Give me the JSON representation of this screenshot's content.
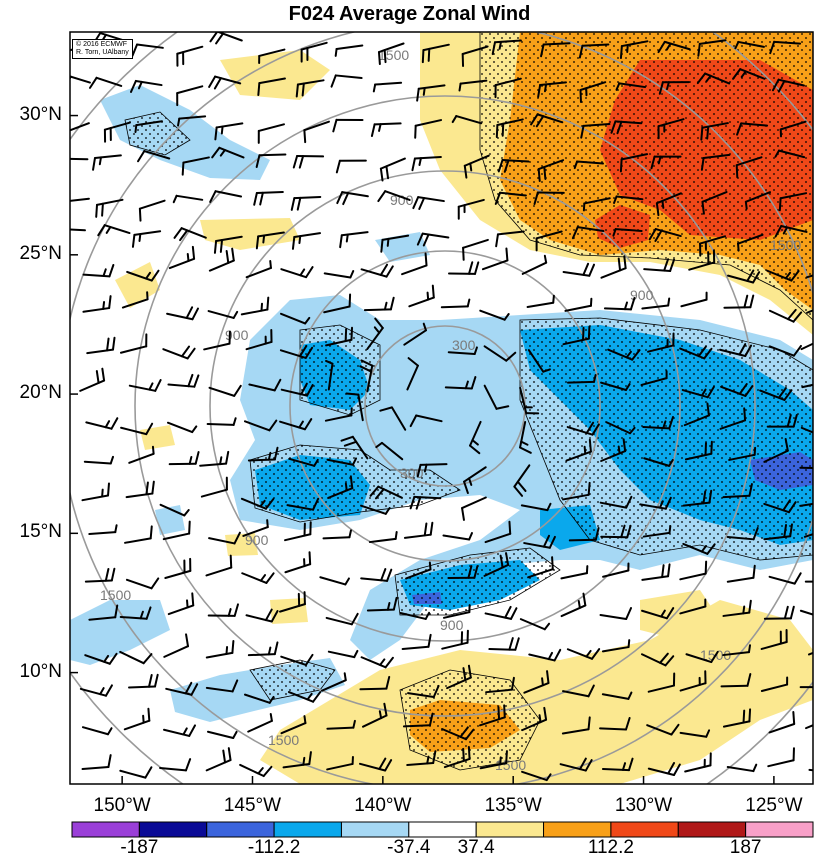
{
  "title": "F024 Average Zonal Wind",
  "credit": {
    "line1": "© 2016 ECMWF",
    "line2": "R. Torn, UAlbany"
  },
  "map": {
    "lon_range": [
      -152,
      -123.5
    ],
    "lat_range": [
      6,
      33
    ],
    "lat_ticks": [
      {
        "value": 30,
        "label": "30°N"
      },
      {
        "value": 25,
        "label": "25°N"
      },
      {
        "value": 20,
        "label": "20°N"
      },
      {
        "value": 15,
        "label": "15°N"
      },
      {
        "value": 10,
        "label": "10°N"
      }
    ],
    "lon_ticks": [
      {
        "value": -150,
        "label": "150°W"
      },
      {
        "value": -145,
        "label": "145°W"
      },
      {
        "value": -140,
        "label": "140°W"
      },
      {
        "value": -135,
        "label": "135°W"
      },
      {
        "value": -130,
        "label": "130°W"
      },
      {
        "value": -125,
        "label": "125°W"
      }
    ],
    "range_rings": {
      "center": {
        "lon": -138.6,
        "lat": 19.5
      },
      "labels": [
        "300",
        "900",
        "1500"
      ]
    }
  },
  "colorbar": {
    "colors": [
      "#9a3fd8",
      "#0a0a96",
      "#3b64dc",
      "#0aa8ec",
      "#a6d8f4",
      "#ffffff",
      "#fbe890",
      "#f8a018",
      "#f04818",
      "#b01818",
      "#f8a0c8"
    ],
    "labels": [
      "-187",
      "-112.2",
      "-37.4",
      "37.4",
      "112.2",
      "187"
    ]
  },
  "colors": {
    "blue_light": "#a6d8f4",
    "blue_mid": "#0aa8ec",
    "blue_dark": "#3b64dc",
    "navy": "#1d2a9c",
    "yellow": "#fbe890",
    "orange": "#f8a018",
    "red": "#f04818",
    "ring": "#9a9a9a"
  }
}
